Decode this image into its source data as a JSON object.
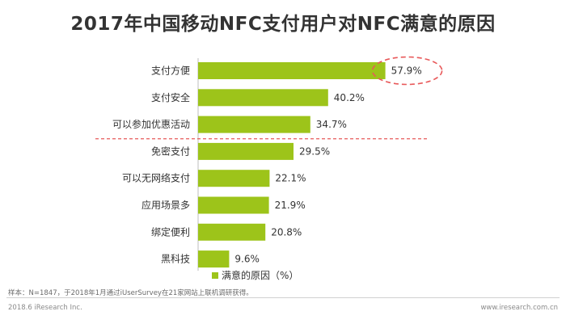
{
  "title": "2017年中国移动NFC支付用户对NFC满意的原因",
  "chart_data": {
    "type": "bar",
    "orientation": "horizontal",
    "categories": [
      "支付方便",
      "支付安全",
      "可以参加优惠活动",
      "免密支付",
      "可以无网络支付",
      "应用场景多",
      "绑定便利",
      "黑科技"
    ],
    "values": [
      57.9,
      40.2,
      34.7,
      29.5,
      22.1,
      21.9,
      20.8,
      9.6
    ],
    "value_labels": [
      "57.9%",
      "40.2%",
      "34.7%",
      "29.5%",
      "22.1%",
      "21.9%",
      "20.8%",
      "9.6%"
    ],
    "series_name": "满意的原因（%）",
    "legend_position": "bottom",
    "highlight_index": 0,
    "separator_after_index": 2,
    "xlim": [
      0,
      60
    ],
    "bar_color": "#9dc41a",
    "accent_color": "#e8595a"
  },
  "footer": {
    "note": "样本：N=1847，于2018年1月通过iUserSurvey在21家网站上联机调研获得。",
    "copyright": "2018.6 iResearch Inc.",
    "website": "www.iresearch.com.cn"
  }
}
